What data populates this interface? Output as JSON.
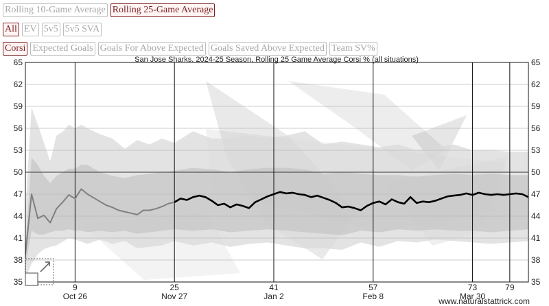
{
  "controls": {
    "averages": [
      {
        "label": "Rolling 10-Game Average",
        "active": false
      },
      {
        "label": "Rolling 25-Game Average",
        "active": true
      }
    ],
    "situations": [
      {
        "label": "All",
        "active": true
      },
      {
        "label": "EV",
        "active": false
      },
      {
        "label": "5v5",
        "active": false
      },
      {
        "label": "5v5 SVA",
        "active": false
      }
    ],
    "metrics": [
      {
        "label": "Corsi",
        "active": true
      },
      {
        "label": "Expected Goals",
        "active": false
      },
      {
        "label": "Goals For Above Expected",
        "active": false
      },
      {
        "label": "Goals Saved Above Expected",
        "active": false
      },
      {
        "label": "Team SV%",
        "active": false
      }
    ]
  },
  "footer": {
    "credit": "www.naturalstattrick.com"
  },
  "chart_data": {
    "type": "line",
    "title": "San Jose Sharks, 2024-25 Season, Rolling 25 Game Average Corsi % (all situations)",
    "xlabel": "",
    "ylabel": "",
    "xlim": [
      1,
      82
    ],
    "ylim": [
      35,
      65
    ],
    "y_ticks": [
      35,
      38,
      41,
      44,
      47,
      50,
      53,
      56,
      59,
      62,
      65
    ],
    "x_game_ticks": [
      9,
      25,
      41,
      57,
      73,
      79
    ],
    "x_date_ticks": [
      {
        "game": 9,
        "label": "Oct 26"
      },
      {
        "game": 25,
        "label": "Nov 27"
      },
      {
        "game": 41,
        "label": "Jan 2"
      },
      {
        "game": 57,
        "label": "Feb 8"
      },
      {
        "game": 73,
        "label": "Mar 30"
      }
    ],
    "reference_line": 50,
    "grid": true,
    "colors": {
      "line_partial": "#7f7f7f",
      "line_full": "#000000",
      "band_outer": "#d9d9d9",
      "band_inner": "#c4c4c4"
    },
    "series": [
      {
        "role": "partial-window",
        "x": [
          1,
          2,
          3,
          4,
          5,
          6,
          7,
          8,
          9,
          10,
          11,
          12,
          13,
          14,
          15,
          16,
          17,
          18,
          19,
          20,
          21,
          22,
          23,
          24,
          25
        ],
        "values": [
          38.8,
          47.0,
          43.7,
          44.1,
          43.1,
          45.0,
          45.9,
          46.9,
          46.4,
          47.7,
          47.0,
          46.5,
          46.0,
          45.5,
          45.2,
          44.8,
          44.6,
          44.4,
          44.2,
          44.8,
          44.8,
          45.0,
          45.3,
          45.7,
          45.9
        ]
      },
      {
        "role": "full-window",
        "x": [
          25,
          26,
          27,
          28,
          29,
          30,
          31,
          32,
          33,
          34,
          35,
          36,
          37,
          38,
          39,
          40,
          41,
          42,
          43,
          44,
          45,
          46,
          47,
          48,
          49,
          50,
          51,
          52,
          53,
          54,
          55,
          56,
          57,
          58,
          59,
          60,
          61,
          62,
          63,
          64,
          65,
          66,
          67,
          68,
          69,
          70,
          71,
          72,
          73,
          74,
          75,
          76,
          77,
          78,
          79,
          80,
          81,
          82
        ],
        "values": [
          45.9,
          46.4,
          46.2,
          46.6,
          46.8,
          46.6,
          46.1,
          45.5,
          45.7,
          45.2,
          45.6,
          45.4,
          45.1,
          45.9,
          46.3,
          46.7,
          47.0,
          47.3,
          47.1,
          47.2,
          47.0,
          46.9,
          46.6,
          46.8,
          46.5,
          46.2,
          45.8,
          45.2,
          45.3,
          45.1,
          44.8,
          45.4,
          45.8,
          46.0,
          45.6,
          46.3,
          45.9,
          45.7,
          46.6,
          45.8,
          46.0,
          45.9,
          46.1,
          46.4,
          46.7,
          46.8,
          46.9,
          47.1,
          46.9,
          47.2,
          47.0,
          46.9,
          47.0,
          46.9,
          47.0,
          47.1,
          47.0,
          46.6
        ]
      }
    ],
    "bands": {
      "x": [
        1,
        2,
        3,
        4,
        5,
        6,
        7,
        8,
        9,
        10,
        11,
        13,
        15,
        17,
        19,
        21,
        23,
        25,
        28,
        31,
        34,
        37,
        40,
        43,
        46,
        49,
        52,
        55,
        58,
        61,
        64,
        67,
        70,
        73,
        76,
        79,
        82
      ],
      "outer_high": [
        45.0,
        58.8,
        56.5,
        54.0,
        51.5,
        55.0,
        55.5,
        56.5,
        56.0,
        56.5,
        56.0,
        55.2,
        54.6,
        53.2,
        54.4,
        53.8,
        54.6,
        54.0,
        55.6,
        54.6,
        54.6,
        55.0,
        54.6,
        55.0,
        55.6,
        53.8,
        54.2,
        53.8,
        53.4,
        53.8,
        53.0,
        53.4,
        53.8,
        53.0,
        53.0,
        52.8,
        52.8
      ],
      "outer_low": [
        35.5,
        37.5,
        38.8,
        39.5,
        39.8,
        40.0,
        40.5,
        41.0,
        40.8,
        40.5,
        40.2,
        40.8,
        40.2,
        40.6,
        39.6,
        39.8,
        40.0,
        40.6,
        40.0,
        40.4,
        39.8,
        40.2,
        40.4,
        40.0,
        39.6,
        39.6,
        39.4,
        40.4,
        39.8,
        40.6,
        40.4,
        40.8,
        40.6,
        40.4,
        40.2,
        40.4,
        40.6
      ],
      "inner_high": [
        40.0,
        52.0,
        51.0,
        49.5,
        48.5,
        49.5,
        50.0,
        50.5,
        50.5,
        51.0,
        51.0,
        50.0,
        49.5,
        49.2,
        49.6,
        49.8,
        50.0,
        50.2,
        50.6,
        50.4,
        50.0,
        50.4,
        50.6,
        50.6,
        50.4,
        49.8,
        50.0,
        49.8,
        49.6,
        49.6,
        49.4,
        49.6,
        49.8,
        49.6,
        49.8,
        49.6,
        49.6
      ],
      "inner_low": [
        37.0,
        42.0,
        41.5,
        41.5,
        41.8,
        42.0,
        42.0,
        42.2,
        42.0,
        42.0,
        41.8,
        42.0,
        41.8,
        42.0,
        41.6,
        41.8,
        42.0,
        42.2,
        42.0,
        42.2,
        41.8,
        42.0,
        42.2,
        42.0,
        41.8,
        41.6,
        41.4,
        42.0,
        41.8,
        42.2,
        42.0,
        42.2,
        42.0,
        42.0,
        41.8,
        42.0,
        42.2
      ]
    }
  }
}
